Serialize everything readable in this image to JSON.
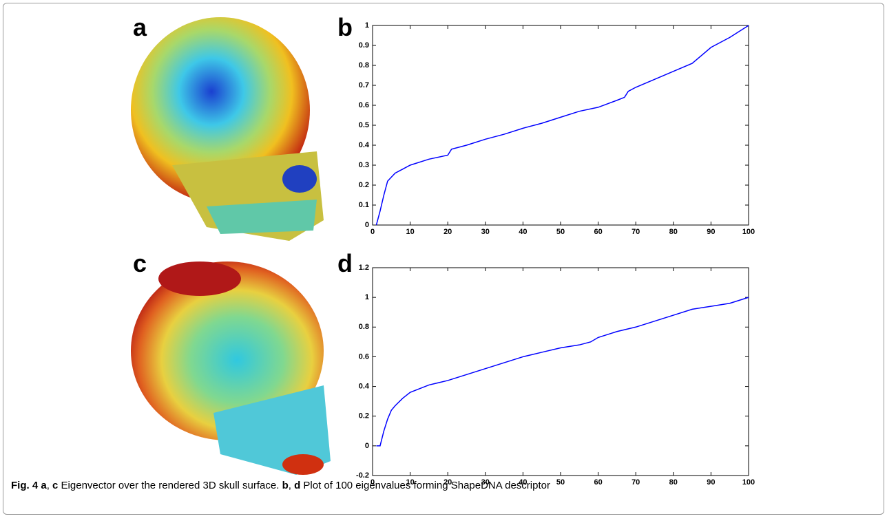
{
  "panel_labels": [
    "a",
    "b",
    "c",
    "d"
  ],
  "caption": [
    "Fig. 4",
    "a",
    ",",
    "c",
    "Eigenvector over the rendered 3D skull surface.",
    "b",
    ",",
    "d",
    "Plot of 100 eigenvalues forming ShapeDNA descriptor"
  ],
  "chart_data": [
    {
      "type": "line",
      "x": [
        1,
        2,
        3,
        4,
        5,
        6,
        7,
        8,
        10,
        15,
        20,
        21,
        25,
        30,
        35,
        40,
        45,
        50,
        55,
        60,
        65,
        67,
        68,
        70,
        75,
        80,
        85,
        90,
        95,
        100
      ],
      "values": [
        0,
        0.07,
        0.15,
        0.22,
        0.24,
        0.26,
        0.27,
        0.28,
        0.3,
        0.33,
        0.35,
        0.38,
        0.4,
        0.43,
        0.455,
        0.485,
        0.51,
        0.54,
        0.57,
        0.59,
        0.625,
        0.64,
        0.67,
        0.69,
        0.73,
        0.77,
        0.81,
        0.89,
        0.94,
        1.0
      ],
      "color": "#0000ff",
      "xlim": [
        0,
        100
      ],
      "ylim": [
        0,
        1
      ],
      "xticks": [
        0,
        10,
        20,
        30,
        40,
        50,
        60,
        70,
        80,
        90,
        100
      ],
      "yticks": [
        0,
        0.1,
        0.2,
        0.3,
        0.4,
        0.5,
        0.6,
        0.7,
        0.8,
        0.9,
        1
      ]
    },
    {
      "type": "line",
      "x": [
        1,
        2,
        3,
        4,
        5,
        6,
        8,
        10,
        15,
        20,
        25,
        30,
        35,
        40,
        45,
        50,
        55,
        58,
        60,
        65,
        70,
        75,
        80,
        85,
        90,
        95,
        100
      ],
      "values": [
        0,
        0.0,
        0.1,
        0.18,
        0.24,
        0.27,
        0.32,
        0.36,
        0.41,
        0.44,
        0.48,
        0.52,
        0.56,
        0.6,
        0.63,
        0.66,
        0.68,
        0.7,
        0.73,
        0.77,
        0.8,
        0.84,
        0.88,
        0.92,
        0.94,
        0.96,
        1.0
      ],
      "color": "#0000ff",
      "xlim": [
        0,
        100
      ],
      "ylim": [
        -0.2,
        1.2
      ],
      "xticks": [
        0,
        10,
        20,
        30,
        40,
        50,
        60,
        70,
        80,
        90,
        100
      ],
      "yticks": [
        -0.2,
        0,
        0.2,
        0.4,
        0.6,
        0.8,
        1,
        1.2
      ]
    }
  ]
}
